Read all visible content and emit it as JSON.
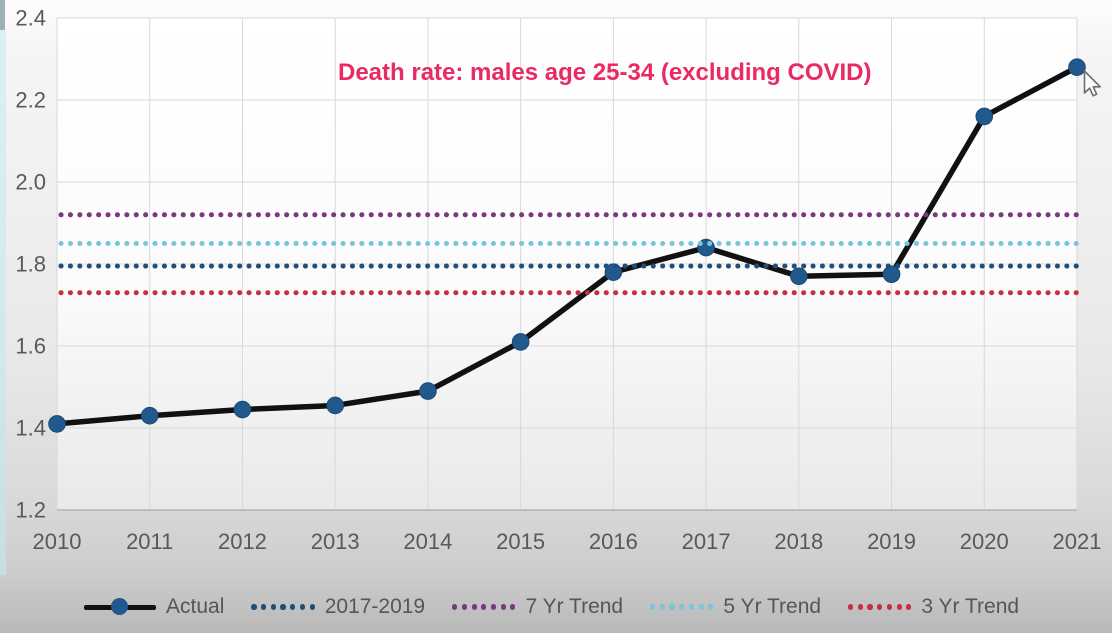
{
  "chart_data": {
    "type": "line",
    "title": "Death rate: males age 25-34 (excluding COVID)",
    "title_color": "#ea2a64",
    "x": [
      "2010",
      "2011",
      "2012",
      "2013",
      "2014",
      "2015",
      "2016",
      "2017",
      "2018",
      "2019",
      "2020",
      "2021"
    ],
    "series": [
      {
        "name": "Actual",
        "kind": "line",
        "color": "#111111",
        "marker_color": "#22598c",
        "marker_edge": "#1b4a74",
        "values": [
          1.41,
          1.43,
          1.445,
          1.455,
          1.49,
          1.61,
          1.78,
          1.84,
          1.77,
          1.775,
          2.16,
          2.28
        ]
      },
      {
        "name": "2017-2019",
        "kind": "hline",
        "style": "dotted",
        "color": "#1f4e79",
        "value": 1.795
      },
      {
        "name": "7 Yr Trend",
        "kind": "hline",
        "style": "dotted",
        "color": "#7b3781",
        "value": 1.92
      },
      {
        "name": "5 Yr Trend",
        "kind": "hline",
        "style": "dotted",
        "color": "#79c5da",
        "value": 1.85
      },
      {
        "name": "3 Yr Trend",
        "kind": "hline",
        "style": "dotted",
        "color": "#c62f3c",
        "value": 1.73
      }
    ],
    "ylim": [
      1.2,
      2.4
    ],
    "yticks": [
      "1.2",
      "1.4",
      "1.6",
      "1.8",
      "2.0",
      "2.2",
      "2.4"
    ],
    "grid": true,
    "legend_position": "bottom",
    "axis_label_color": "#595959",
    "gridline_color": "#d8d8d8",
    "axis_line_color": "#ababab"
  },
  "pointer": {
    "shape": "arrow"
  }
}
